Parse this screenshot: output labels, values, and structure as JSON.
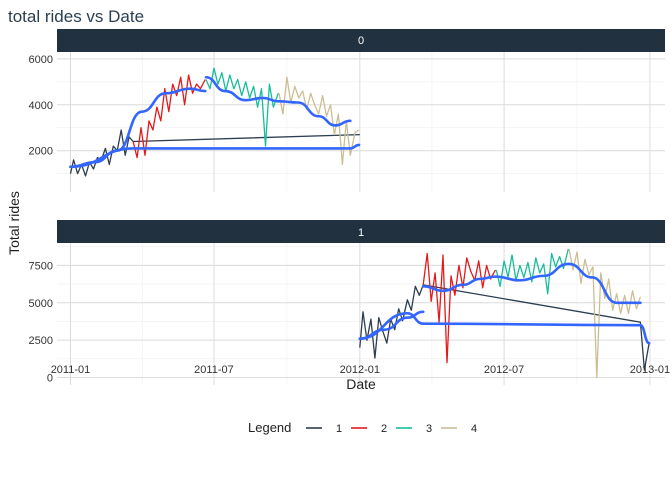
{
  "chart_data": {
    "type": "line",
    "title": "total rides vs Date",
    "xlabel": "Date",
    "ylabel": "Total rides",
    "x_ticks": [
      "2011-01",
      "2011-07",
      "2012-01",
      "2012-07",
      "2013-01"
    ],
    "x_range": [
      "2010-12-15",
      "2013-01-20"
    ],
    "legend": {
      "title": "Legend",
      "position": "bottom",
      "entries": [
        "1",
        "2",
        "3",
        "4"
      ]
    },
    "colors": {
      "1": "#2c3e50",
      "2": "#e31a1c",
      "3": "#18bc9c",
      "4": "#ccbe93",
      "smooth": "#3366ff",
      "strip": "#223140"
    },
    "panels": [
      {
        "label": "0",
        "ylim": [
          200,
          6300
        ],
        "y_ticks": [
          2000,
          4000,
          6000
        ],
        "series": [
          {
            "name": "1",
            "x": [
              "2011-01-01",
              "2011-01-05",
              "2011-01-10",
              "2011-01-15",
              "2011-01-20",
              "2011-01-25",
              "2011-01-30",
              "2011-02-04",
              "2011-02-09",
              "2011-02-14",
              "2011-02-19",
              "2011-02-24",
              "2011-03-01",
              "2011-03-06",
              "2011-03-11",
              "2011-03-16",
              "2011-03-21",
              "2012-01-01"
            ],
            "y": [
              1000,
              1600,
              1000,
              1400,
              900,
              1500,
              1200,
              1700,
              1600,
              2100,
              1400,
              2200,
              2000,
              2900,
              1800,
              2600,
              2400,
              2700
            ]
          },
          {
            "name": "2",
            "x": [
              "2011-03-21",
              "2011-03-26",
              "2011-03-31",
              "2011-04-05",
              "2011-04-10",
              "2011-04-15",
              "2011-04-20",
              "2011-04-25",
              "2011-04-30",
              "2011-05-05",
              "2011-05-10",
              "2011-05-15",
              "2011-05-20",
              "2011-05-25",
              "2011-05-30",
              "2011-06-04",
              "2011-06-09",
              "2011-06-14",
              "2011-06-20"
            ],
            "y": [
              2400,
              1700,
              3000,
              1800,
              3300,
              2900,
              3900,
              3300,
              4700,
              3700,
              4900,
              4400,
              5200,
              4000,
              5300,
              4500,
              4900,
              4700,
              5100
            ]
          },
          {
            "name": "3",
            "x": [
              "2011-06-21",
              "2011-06-26",
              "2011-07-01",
              "2011-07-06",
              "2011-07-11",
              "2011-07-16",
              "2011-07-21",
              "2011-07-26",
              "2011-07-31",
              "2011-08-05",
              "2011-08-10",
              "2011-08-15",
              "2011-08-20",
              "2011-08-25",
              "2011-08-30",
              "2011-09-04",
              "2011-09-09",
              "2011-09-14",
              "2011-09-20"
            ],
            "y": [
              5100,
              4700,
              5600,
              4900,
              5400,
              4600,
              5300,
              4700,
              5100,
              4400,
              5000,
              4300,
              4800,
              3900,
              4700,
              2200,
              4900,
              3900,
              4500
            ]
          },
          {
            "name": "4",
            "x": [
              "2011-09-21",
              "2011-09-26",
              "2011-10-01",
              "2011-10-06",
              "2011-10-11",
              "2011-10-16",
              "2011-10-21",
              "2011-10-26",
              "2011-10-31",
              "2011-11-05",
              "2011-11-10",
              "2011-11-15",
              "2011-11-20",
              "2011-11-25",
              "2011-11-30",
              "2011-12-05",
              "2011-12-10",
              "2011-12-15",
              "2011-12-20",
              "2011-12-26",
              "2011-12-31"
            ],
            "y": [
              4500,
              3600,
              5200,
              4100,
              4800,
              4300,
              4600,
              3800,
              4500,
              4000,
              3600,
              4400,
              3500,
              4000,
              2700,
              3600,
              1400,
              3300,
              1800,
              2800,
              2900
            ]
          }
        ],
        "smooth": [
          {
            "x": [
              "2011-01-01",
              "2011-02-01",
              "2011-03-01",
              "2011-04-01",
              "2011-05-01",
              "2011-06-01",
              "2011-06-20"
            ],
            "y": [
              1300,
              1500,
              2000,
              3700,
              4500,
              4700,
              4600
            ]
          },
          {
            "x": [
              "2011-06-21",
              "2011-07-15",
              "2011-08-10",
              "2011-09-01",
              "2011-09-20"
            ],
            "y": [
              5200,
              4600,
              4200,
              4300,
              4150
            ]
          },
          {
            "x": [
              "2011-09-21",
              "2011-10-15",
              "2011-11-10",
              "2011-12-01",
              "2011-12-20"
            ],
            "y": [
              4150,
              4100,
              3500,
              3100,
              3300
            ]
          },
          {
            "x": [
              "2011-01-01",
              "2011-03-21",
              "2011-12-20",
              "2011-12-31"
            ],
            "y": [
              1300,
              2100,
              2100,
              2250
            ]
          }
        ]
      },
      {
        "label": "1",
        "ylim": [
          -500,
          9000
        ],
        "y_ticks": [
          0,
          2500,
          5000,
          7500
        ],
        "series": [
          {
            "name": "1",
            "x": [
              "2012-01-01",
              "2012-01-05",
              "2012-01-10",
              "2012-01-15",
              "2012-01-20",
              "2012-01-25",
              "2012-01-30",
              "2012-02-04",
              "2012-02-09",
              "2012-02-14",
              "2012-02-19",
              "2012-02-24",
              "2012-03-01",
              "2012-03-06",
              "2012-03-11",
              "2012-03-16",
              "2012-03-21",
              "2012-12-20",
              "2012-12-25",
              "2012-12-31"
            ],
            "y": [
              2000,
              4400,
              2500,
              3900,
              1300,
              4000,
              3100,
              2300,
              3900,
              3200,
              4600,
              3800,
              5200,
              4500,
              6100,
              5500,
              6200,
              3700,
              500,
              2300
            ]
          },
          {
            "name": "2",
            "x": [
              "2012-03-21",
              "2012-03-26",
              "2012-03-31",
              "2012-04-05",
              "2012-04-10",
              "2012-04-15",
              "2012-04-20",
              "2012-04-25",
              "2012-04-30",
              "2012-05-05",
              "2012-05-10",
              "2012-05-15",
              "2012-05-20",
              "2012-05-25",
              "2012-05-30",
              "2012-06-04",
              "2012-06-09",
              "2012-06-14",
              "2012-06-20"
            ],
            "y": [
              6200,
              8300,
              5100,
              7000,
              3700,
              8200,
              1000,
              6800,
              5500,
              7500,
              6000,
              8000,
              7100,
              6500,
              7800,
              6000,
              7500,
              6600,
              7200
            ]
          },
          {
            "name": "3",
            "x": [
              "2012-06-21",
              "2012-06-26",
              "2012-07-01",
              "2012-07-06",
              "2012-07-11",
              "2012-07-16",
              "2012-07-21",
              "2012-07-26",
              "2012-07-31",
              "2012-08-05",
              "2012-08-10",
              "2012-08-15",
              "2012-08-20",
              "2012-08-25",
              "2012-08-30",
              "2012-09-04",
              "2012-09-09",
              "2012-09-14",
              "2012-09-20"
            ],
            "y": [
              7200,
              6100,
              7800,
              6700,
              8200,
              6500,
              7500,
              6700,
              7700,
              6400,
              8000,
              7000,
              7600,
              5600,
              8300,
              7400,
              8100,
              7300,
              8600
            ]
          },
          {
            "name": "4",
            "x": [
              "2012-09-21",
              "2012-09-26",
              "2012-10-01",
              "2012-10-06",
              "2012-10-11",
              "2012-10-16",
              "2012-10-21",
              "2012-10-26",
              "2012-10-31",
              "2012-11-05",
              "2012-11-10",
              "2012-11-15",
              "2012-11-20",
              "2012-11-25",
              "2012-11-30",
              "2012-12-05",
              "2012-12-10",
              "2012-12-15",
              "2012-12-20"
            ],
            "y": [
              8600,
              7200,
              8400,
              6300,
              7900,
              6900,
              7400,
              0,
              7000,
              5300,
              6600,
              4500,
              5600,
              4300,
              5500,
              4300,
              5800,
              4600,
              5400
            ]
          }
        ],
        "smooth": [
          {
            "x": [
              "2012-01-01",
              "2012-02-01",
              "2012-03-01",
              "2012-03-21"
            ],
            "y": [
              2600,
              3200,
              4000,
              4400
            ]
          },
          {
            "x": [
              "2012-03-21",
              "2012-04-15",
              "2012-05-10",
              "2012-06-01",
              "2012-06-20"
            ],
            "y": [
              6100,
              5800,
              6200,
              6600,
              6750
            ]
          },
          {
            "x": [
              "2012-06-21",
              "2012-07-20",
              "2012-08-20",
              "2012-09-20"
            ],
            "y": [
              6750,
              6500,
              6800,
              7600
            ]
          },
          {
            "x": [
              "2012-09-21",
              "2012-10-20",
              "2012-11-20",
              "2012-12-20"
            ],
            "y": [
              7600,
              6700,
              5000,
              5000
            ]
          },
          {
            "x": [
              "2012-01-01",
              "2012-03-01",
              "2012-03-21",
              "2012-12-20",
              "2012-12-31"
            ],
            "y": [
              2600,
              4300,
              3600,
              3500,
              2300
            ]
          }
        ]
      }
    ]
  }
}
